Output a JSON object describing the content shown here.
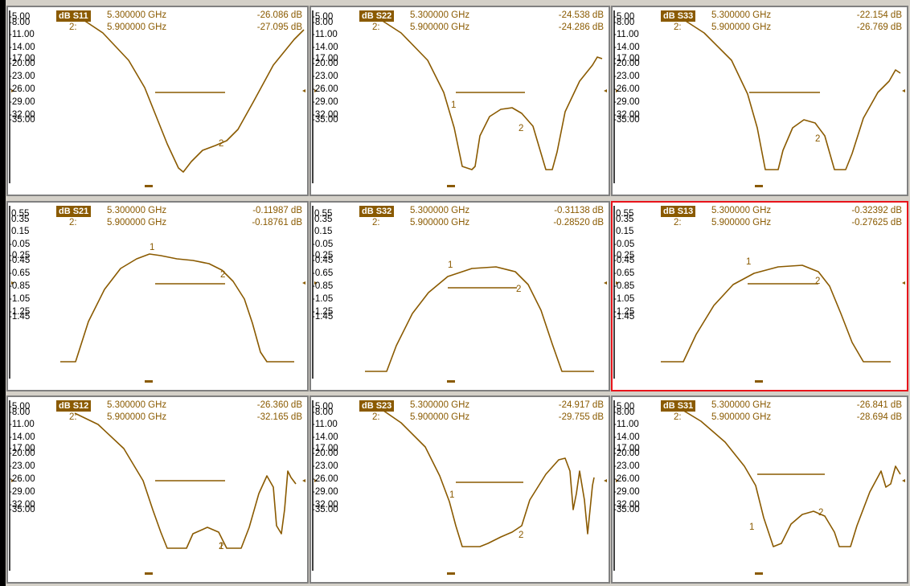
{
  "trace_color": "#8a5a00",
  "active_border_color": "#e8141b",
  "panes": [
    {
      "trace": "dB S11",
      "m1_freq": "5.300000 GHz",
      "m1_val": "-26.086 dB",
      "m2_id": "2:",
      "m2_freq": "5.900000 GHz",
      "m2_val": "-27.095 dB",
      "active": false,
      "ticks": [
        "-5.00",
        "-8.00",
        "-11.00",
        "-14.00",
        "-17.00",
        "-20.00",
        "-23.00",
        "-26.00",
        "-29.00",
        "-32.00",
        "-35.00"
      ],
      "labels": [
        "2"
      ]
    },
    {
      "trace": "dB S22",
      "m1_freq": "5.300000 GHz",
      "m1_val": "-24.538 dB",
      "m2_id": "2:",
      "m2_freq": "5.900000 GHz",
      "m2_val": "-24.286 dB",
      "active": false,
      "ticks": [
        "-5.00",
        "-8.00",
        "-11.00",
        "-14.00",
        "-17.00",
        "-20.00",
        "-23.00",
        "-26.00",
        "-29.00",
        "-32.00",
        "-35.00"
      ],
      "labels": [
        "1",
        "2"
      ]
    },
    {
      "trace": "dB S33",
      "m1_freq": "5.300000 GHz",
      "m1_val": "-22.154 dB",
      "m2_id": "2:",
      "m2_freq": "5.900000 GHz",
      "m2_val": "-26.769 dB",
      "active": false,
      "ticks": [
        "-5.00",
        "-8.00",
        "-11.00",
        "-14.00",
        "-17.00",
        "-20.00",
        "-23.00",
        "-26.00",
        "-29.00",
        "-32.00",
        "-35.00"
      ],
      "labels": [
        "2"
      ]
    },
    {
      "trace": "dB S21",
      "m1_freq": "5.300000 GHz",
      "m1_val": "-0.11987 dB",
      "m2_id": "2:",
      "m2_freq": "5.900000 GHz",
      "m2_val": "-0.18761 dB",
      "active": false,
      "ticks": [
        "0.55",
        "0.35",
        "0.15",
        "-0.05",
        "-0.25",
        "-0.45",
        "-0.65",
        "-0.85",
        "-1.05",
        "-1.25",
        "-1.45"
      ],
      "labels": [
        "1",
        "2"
      ]
    },
    {
      "trace": "dB S32",
      "m1_freq": "5.300000 GHz",
      "m1_val": "-0.31138 dB",
      "m2_id": "2:",
      "m2_freq": "5.900000 GHz",
      "m2_val": "-0.28520 dB",
      "active": false,
      "ticks": [
        "0.55",
        "0.35",
        "0.15",
        "-0.05",
        "-0.25",
        "-0.45",
        "-0.65",
        "-0.85",
        "-1.05",
        "-1.25",
        "-1.45"
      ],
      "labels": [
        "1",
        "2"
      ]
    },
    {
      "trace": "dB S13",
      "m1_freq": "5.300000 GHz",
      "m1_val": "-0.32392 dB",
      "m2_id": "2:",
      "m2_freq": "5.900000 GHz",
      "m2_val": "-0.27625 dB",
      "active": true,
      "ticks": [
        "0.55",
        "0.35",
        "0.15",
        "-0.05",
        "-0.25",
        "-0.45",
        "-0.65",
        "-0.85",
        "-1.05",
        "-1.25",
        "-1.45"
      ],
      "labels": [
        "1",
        "2"
      ]
    },
    {
      "trace": "dB S12",
      "m1_freq": "5.300000 GHz",
      "m1_val": "-26.360 dB",
      "m2_id": "2:",
      "m2_freq": "5.900000 GHz",
      "m2_val": "-32.165 dB",
      "active": false,
      "ticks": [
        "-5.00",
        "-8.00",
        "-11.00",
        "-14.00",
        "-17.00",
        "-20.00",
        "-23.00",
        "-26.00",
        "-29.00",
        "-32.00",
        "-35.00"
      ],
      "labels": [
        "1",
        "2"
      ]
    },
    {
      "trace": "dB S23",
      "m1_freq": "5.300000 GHz",
      "m1_val": "-24.917 dB",
      "m2_id": "2:",
      "m2_freq": "5.900000 GHz",
      "m2_val": "-29.755 dB",
      "active": false,
      "ticks": [
        "-5.00",
        "-8.00",
        "-11.00",
        "-14.00",
        "-17.00",
        "-20.00",
        "-23.00",
        "-26.00",
        "-29.00",
        "-32.00",
        "-35.00"
      ],
      "labels": [
        "1",
        "2"
      ]
    },
    {
      "trace": "dB S31",
      "m1_freq": "5.300000 GHz",
      "m1_val": "-26.841 dB",
      "m2_id": "2:",
      "m2_freq": "5.900000 GHz",
      "m2_val": "-28.694 dB",
      "active": false,
      "ticks": [
        "-5.00",
        "-8.00",
        "-11.00",
        "-14.00",
        "-17.00",
        "-20.00",
        "-23.00",
        "-26.00",
        "-29.00",
        "-32.00",
        "-35.00"
      ],
      "labels": [
        "1",
        "2"
      ]
    }
  ]
}
